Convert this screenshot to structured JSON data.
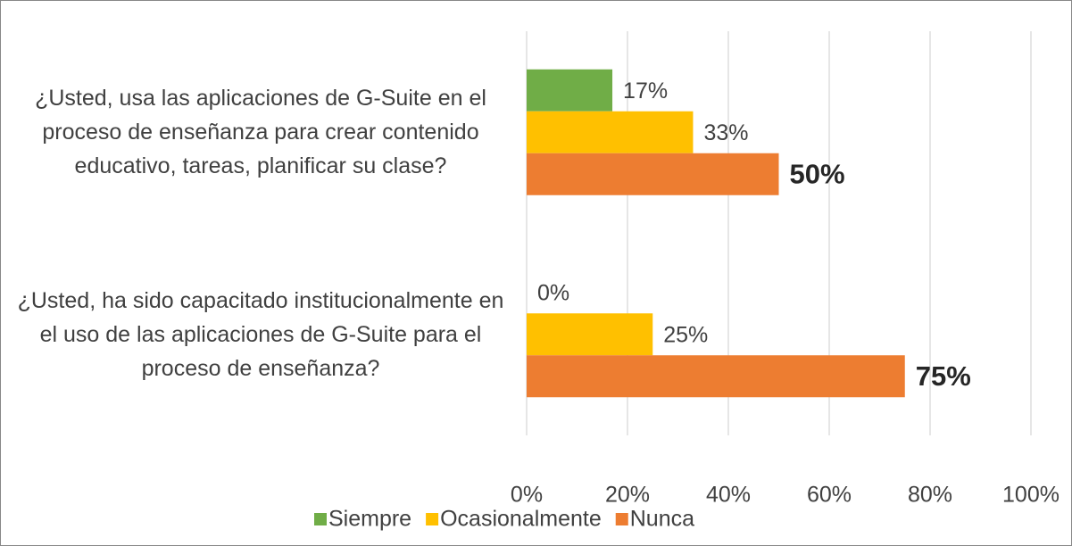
{
  "chart_data": {
    "type": "bar",
    "orientation": "horizontal",
    "categories": [
      "¿Usted, usa las aplicaciones de G-Suite en el proceso de enseñanza para crear contenido educativo, tareas, planificar su clase?",
      "¿Usted, ha sido capacitado institucionalmente en el uso de las aplicaciones de G-Suite para el proceso de enseñanza?"
    ],
    "series": [
      {
        "name": "Siempre",
        "color": "#70ad47",
        "values": [
          17,
          0
        ],
        "value_labels": [
          "17%",
          "0%"
        ]
      },
      {
        "name": "Ocasionalmente",
        "color": "#ffc000",
        "values": [
          33,
          25
        ],
        "value_labels": [
          "33%",
          "25%"
        ]
      },
      {
        "name": "Nunca",
        "color": "#ed7d31",
        "values": [
          50,
          75
        ],
        "value_labels": [
          "50%",
          "75%"
        ]
      }
    ],
    "xlim": [
      0,
      100
    ],
    "xticks": [
      {
        "value": 0,
        "label": "0%"
      },
      {
        "value": 20,
        "label": "20%"
      },
      {
        "value": 40,
        "label": "40%"
      },
      {
        "value": 60,
        "label": "60%"
      },
      {
        "value": 80,
        "label": "80%"
      },
      {
        "value": 100,
        "label": "100%"
      }
    ],
    "grid": true,
    "legend": "bottom"
  }
}
